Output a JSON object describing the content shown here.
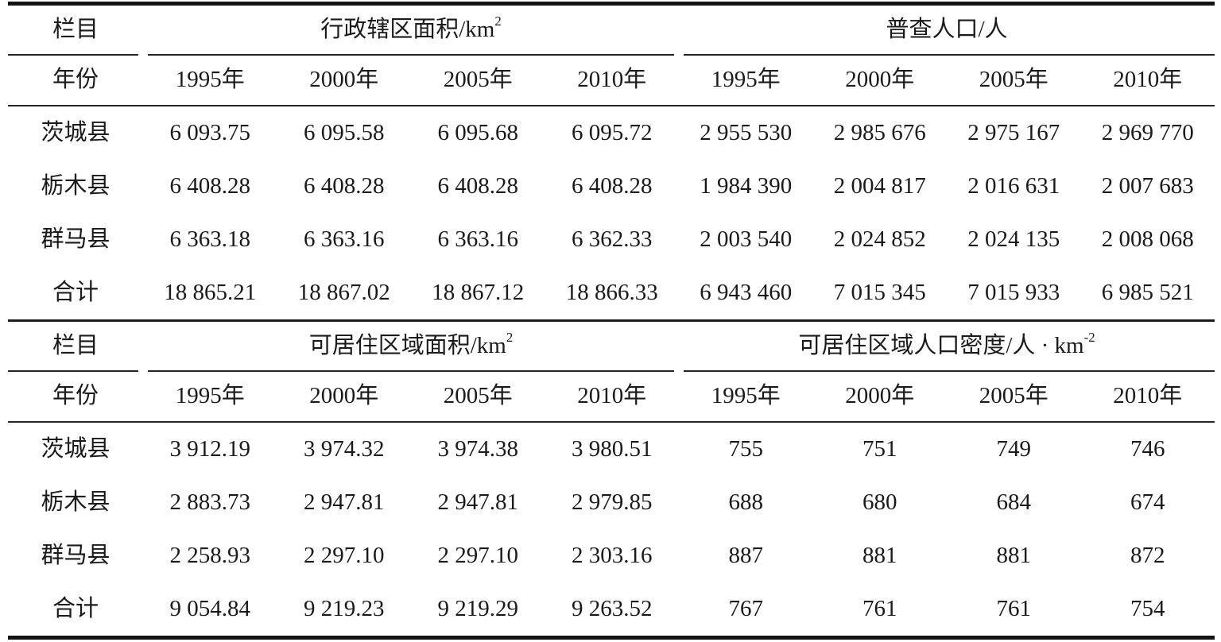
{
  "chart_data": {
    "type": "table",
    "corner_label": "栏目",
    "year_row_label": "年份",
    "years": [
      "1995年",
      "2000年",
      "2005年",
      "2010年"
    ],
    "sections": [
      {
        "left_group": {
          "title_base": "行政辖区面积/km",
          "title_sup": "2"
        },
        "right_group": {
          "title_base": "普查人口/人",
          "title_sup": ""
        },
        "rows": [
          {
            "label": "茨城县",
            "left": [
              "6 093.75",
              "6 095.58",
              "6 095.68",
              "6 095.72"
            ],
            "right": [
              "2 955 530",
              "2 985 676",
              "2 975 167",
              "2 969 770"
            ]
          },
          {
            "label": "栃木县",
            "left": [
              "6 408.28",
              "6 408.28",
              "6 408.28",
              "6 408.28"
            ],
            "right": [
              "1 984 390",
              "2 004 817",
              "2 016 631",
              "2 007 683"
            ]
          },
          {
            "label": "群马县",
            "left": [
              "6 363.18",
              "6 363.16",
              "6 363.16",
              "6 362.33"
            ],
            "right": [
              "2 003 540",
              "2 024 852",
              "2 024 135",
              "2 008 068"
            ]
          },
          {
            "label": "合计",
            "left": [
              "18 865.21",
              "18 867.02",
              "18 867.12",
              "18 866.33"
            ],
            "right": [
              "6 943 460",
              "7 015 345",
              "7 015 933",
              "6 985 521"
            ]
          }
        ]
      },
      {
        "left_group": {
          "title_base": "可居住区域面积/km",
          "title_sup": "2"
        },
        "right_group": {
          "title_base": "可居住区域人口密度/人 · km",
          "title_sup": "-2"
        },
        "rows": [
          {
            "label": "茨城县",
            "left": [
              "3 912.19",
              "3 974.32",
              "3 974.38",
              "3 980.51"
            ],
            "right": [
              "755",
              "751",
              "749",
              "746"
            ]
          },
          {
            "label": "栃木县",
            "left": [
              "2 883.73",
              "2 947.81",
              "2 947.81",
              "2 979.85"
            ],
            "right": [
              "688",
              "680",
              "684",
              "674"
            ]
          },
          {
            "label": "群马县",
            "left": [
              "2 258.93",
              "2 297.10",
              "2 297.10",
              "2 303.16"
            ],
            "right": [
              "887",
              "881",
              "881",
              "872"
            ]
          },
          {
            "label": "合计",
            "left": [
              "9 054.84",
              "9 219.23",
              "9 219.29",
              "9 263.52"
            ],
            "right": [
              "767",
              "761",
              "761",
              "754"
            ]
          }
        ]
      }
    ],
    "colors": {
      "text": "#1a1a1a",
      "rule": "#1d1d1d"
    }
  }
}
